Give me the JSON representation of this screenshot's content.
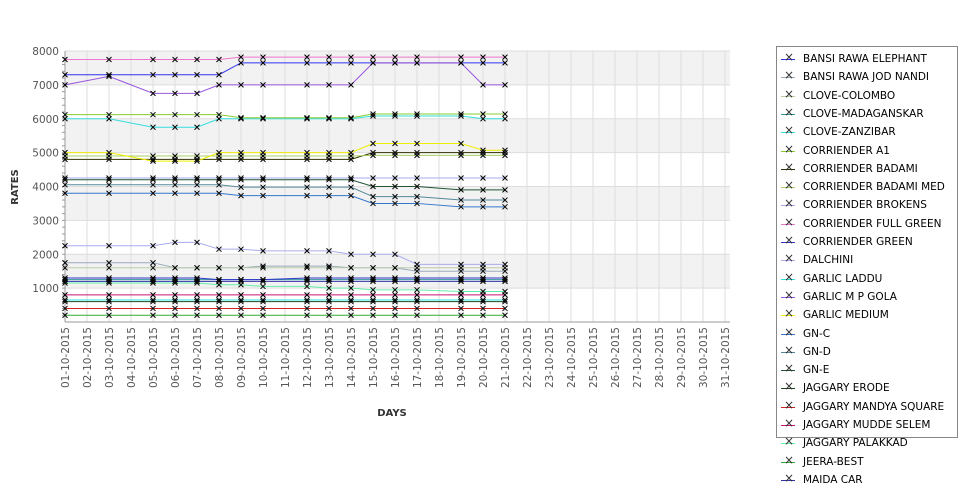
{
  "chart_data": {
    "type": "line",
    "xlabel": "DAYS",
    "ylabel": "RATES",
    "ylim": [
      0,
      8000
    ],
    "yticks": [
      1000,
      2000,
      3000,
      4000,
      5000,
      6000,
      7000,
      8000
    ],
    "xticks": [
      "01-10-2015",
      "02-10-2015",
      "03-10-2015",
      "04-10-2015",
      "05-10-2015",
      "06-10-2015",
      "07-10-2015",
      "08-10-2015",
      "09-10-2015",
      "10-10-2015",
      "11-10-2015",
      "12-10-2015",
      "13-10-2015",
      "14-10-2015",
      "15-10-2015",
      "16-10-2015",
      "17-10-2015",
      "18-10-2015",
      "19-10-2015",
      "20-10-2015",
      "21-10-2015",
      "22-10-2015",
      "23-10-2015",
      "24-10-2015",
      "25-10-2015",
      "26-10-2015",
      "27-10-2015",
      "28-10-2015",
      "29-10-2015",
      "30-10-2015",
      "31-10-2015"
    ],
    "x_days": [
      1,
      3,
      5,
      6,
      7,
      8,
      9,
      10,
      12,
      13,
      14,
      15,
      16,
      17,
      19,
      20,
      21
    ],
    "legend_position": "right",
    "series": [
      {
        "name": "BANSI RAWA ELEPHANT",
        "color": "#3333ee",
        "values": [
          7300,
          7300,
          7300,
          7300,
          7300,
          7300,
          7650,
          7650,
          7650,
          7650,
          7650,
          7650,
          7650,
          7650,
          7650,
          7650,
          7650
        ]
      },
      {
        "name": "BANSI RAWA JOD NANDI",
        "color": "#99aabb",
        "values": [
          1750,
          1750,
          1750,
          1600,
          1600,
          1600,
          1600,
          1650,
          1650,
          1650,
          1600,
          1600,
          1600,
          1500,
          1500,
          1500,
          1500
        ]
      },
      {
        "name": "CLOVE-COLOMBO",
        "color": "#bbccaa",
        "values": [
          1600,
          1600,
          1600,
          1600,
          1600,
          1600,
          1600,
          1600,
          1600,
          1600,
          1600,
          1600,
          1600,
          1600,
          1600,
          1600,
          1600
        ]
      },
      {
        "name": "CLOVE-MADAGANSKAR",
        "color": "#339999",
        "values": [
          1250,
          1250,
          1250,
          1250,
          1250,
          1250,
          1250,
          1250,
          1250,
          1250,
          1250,
          1250,
          1250,
          1250,
          1250,
          1250,
          1250
        ]
      },
      {
        "name": "CLOVE-ZANZIBAR",
        "color": "#33dddd",
        "values": [
          6000,
          6000,
          5750,
          5750,
          5750,
          6000,
          6000,
          6000,
          6000,
          6000,
          6000,
          6080,
          6080,
          6080,
          6080,
          6000,
          6000
        ]
      },
      {
        "name": "CORRIENDER A1",
        "color": "#88cc33",
        "values": [
          6120,
          6120,
          6120,
          6120,
          6120,
          6120,
          6030,
          6030,
          6030,
          6030,
          6030,
          6140,
          6140,
          6140,
          6140,
          6140,
          6140
        ]
      },
      {
        "name": "CORRIENDER BADAMI",
        "color": "#333300",
        "values": [
          4800,
          4800,
          4800,
          4800,
          4800,
          4800,
          4800,
          4800,
          4800,
          4800,
          4800,
          5000,
          5000,
          5000,
          5000,
          5000,
          5000
        ]
      },
      {
        "name": "CORRIENDER BADAMI MED",
        "color": "#aacc66",
        "values": [
          4900,
          4900,
          4900,
          4900,
          4900,
          4900,
          4900,
          4900,
          4900,
          4900,
          4900,
          4920,
          4920,
          4920,
          4920,
          4920,
          4920
        ]
      },
      {
        "name": "CORRIENDER BROKENS",
        "color": "#aaaaee",
        "values": [
          4250,
          4250,
          4250,
          4250,
          4250,
          4250,
          4250,
          4250,
          4250,
          4250,
          4250,
          4250,
          4250,
          4250,
          4250,
          4250,
          4250
        ]
      },
      {
        "name": "CORRIENDER FULL GREEN",
        "color": "#ee77cc",
        "values": [
          7750,
          7750,
          7750,
          7750,
          7750,
          7750,
          7820,
          7820,
          7820,
          7820,
          7820,
          7820,
          7820,
          7820,
          7820,
          7820,
          7820
        ]
      },
      {
        "name": "CORRIENDER GREEN",
        "color": "#3333cc",
        "values": [
          1300,
          1300,
          1300,
          1300,
          1300,
          1250,
          1250,
          1250,
          1300,
          1300,
          1300,
          1300,
          1300,
          1300,
          1300,
          1300,
          1300
        ]
      },
      {
        "name": "DALCHINI",
        "color": "#aaaaee",
        "values": [
          2250,
          2250,
          2250,
          2350,
          2350,
          2150,
          2150,
          2100,
          2100,
          2100,
          2000,
          2000,
          2000,
          1700,
          1700,
          1700,
          1700
        ]
      },
      {
        "name": "GARLIC LADDU",
        "color": "#33dddd",
        "values": [
          650,
          650,
          650,
          650,
          650,
          650,
          650,
          650,
          650,
          650,
          650,
          650,
          650,
          650,
          650,
          650,
          650
        ]
      },
      {
        "name": "GARLIC M P GOLA",
        "color": "#9955dd",
        "values": [
          7000,
          7250,
          6750,
          6750,
          6750,
          7000,
          7000,
          7000,
          7000,
          7000,
          7000,
          7650,
          7650,
          7650,
          7650,
          7000,
          7000
        ]
      },
      {
        "name": "GARLIC MEDIUM",
        "color": "#eeee00",
        "values": [
          5000,
          5000,
          4750,
          4750,
          4750,
          5000,
          5000,
          5000,
          5000,
          5000,
          5000,
          5270,
          5270,
          5270,
          5270,
          5070,
          5070
        ]
      },
      {
        "name": "GN-C",
        "color": "#3377cc",
        "values": [
          3800,
          3800,
          3800,
          3800,
          3800,
          3800,
          3730,
          3730,
          3730,
          3730,
          3730,
          3500,
          3500,
          3500,
          3400,
          3400,
          3400
        ]
      },
      {
        "name": "GN-D",
        "color": "#558899",
        "values": [
          4050,
          4050,
          4050,
          4050,
          4050,
          4050,
          3980,
          3980,
          3980,
          3980,
          3980,
          3700,
          3700,
          3700,
          3600,
          3600,
          3600
        ]
      },
      {
        "name": "GN-E",
        "color": "#225533",
        "values": [
          4200,
          4200,
          4200,
          4200,
          4200,
          4200,
          4200,
          4200,
          4200,
          4200,
          4200,
          4000,
          4000,
          4000,
          3900,
          3900,
          3900
        ]
      },
      {
        "name": "JAGGARY ERODE",
        "color": "#224422",
        "values": [
          600,
          600,
          600,
          600,
          600,
          600,
          600,
          600,
          600,
          600,
          600,
          600,
          600,
          600,
          600,
          600,
          600
        ]
      },
      {
        "name": "JAGGARY MANDYA SQUARE",
        "color": "#cc2222",
        "values": [
          400,
          400,
          400,
          400,
          400,
          400,
          400,
          400,
          400,
          400,
          400,
          400,
          400,
          400,
          400,
          400,
          400
        ]
      },
      {
        "name": "JAGGARY MUDDE SELEM",
        "color": "#cc1177",
        "values": [
          800,
          800,
          800,
          800,
          800,
          800,
          800,
          800,
          800,
          800,
          800,
          800,
          800,
          800,
          800,
          800,
          800
        ]
      },
      {
        "name": "JAGGARY PALAKKAD",
        "color": "#66eeaa",
        "values": [
          1150,
          1150,
          1150,
          1150,
          1150,
          1100,
          1100,
          1050,
          1050,
          1000,
          1000,
          950,
          950,
          950,
          900,
          900,
          900
        ]
      },
      {
        "name": "JEERA-BEST",
        "color": "#33aa33",
        "values": [
          200,
          200,
          200,
          200,
          200,
          200,
          200,
          200,
          200,
          200,
          200,
          200,
          200,
          200,
          200,
          200,
          200
        ]
      },
      {
        "name": "MAIDA CAR",
        "color": "#3333aa",
        "values": [
          1200,
          1200,
          1200,
          1200,
          1200,
          1200,
          1200,
          1200,
          1200,
          1200,
          1200,
          1200,
          1200,
          1200,
          1200,
          1200,
          1200
        ]
      }
    ]
  }
}
